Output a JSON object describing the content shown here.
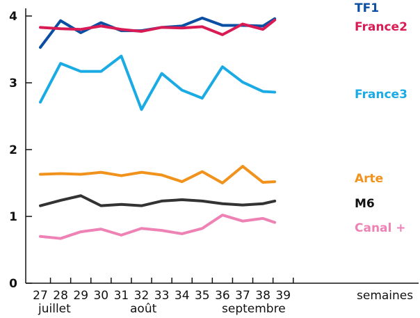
{
  "chart_data": {
    "type": "line",
    "x": [
      "27",
      "28",
      "29",
      "30",
      "31",
      "32",
      "33",
      "34",
      "35",
      "36",
      "37",
      "38",
      "39"
    ],
    "xlabel": "semaines",
    "x_groups": [
      "juillet",
      "août",
      "septembre"
    ],
    "yticks": [
      "0",
      "1",
      "2",
      "3",
      "4"
    ],
    "ylim": [
      0,
      4.1
    ],
    "grid": false,
    "series": [
      {
        "name": "TF1",
        "color": "#0a4fa3",
        "values": [
          3.53,
          3.93,
          3.75,
          3.9,
          3.78,
          3.78,
          3.83,
          3.85,
          3.97,
          3.86,
          3.86,
          3.85,
          3.96
        ]
      },
      {
        "name": "France2",
        "color": "#d81b54",
        "values": [
          3.83,
          3.81,
          3.8,
          3.85,
          3.8,
          3.77,
          3.83,
          3.82,
          3.84,
          3.72,
          3.88,
          3.8,
          3.94
        ]
      },
      {
        "name": "France3",
        "color": "#1aabe4",
        "values": [
          2.71,
          3.29,
          3.17,
          3.17,
          3.4,
          2.6,
          3.14,
          2.89,
          2.77,
          3.24,
          3.01,
          2.87,
          2.86
        ]
      },
      {
        "name": "Arte",
        "color": "#f0921c",
        "values": [
          1.63,
          1.64,
          1.63,
          1.66,
          1.61,
          1.66,
          1.62,
          1.52,
          1.67,
          1.5,
          1.75,
          1.51,
          1.52
        ]
      },
      {
        "name": "M6",
        "color": "#333333",
        "values": [
          1.16,
          1.24,
          1.31,
          1.16,
          1.18,
          1.16,
          1.23,
          1.25,
          1.23,
          1.19,
          1.17,
          1.19,
          1.23
        ]
      },
      {
        "name": "Canal +",
        "color": "#ee82b4",
        "values": [
          0.7,
          0.67,
          0.77,
          0.81,
          0.72,
          0.82,
          0.79,
          0.74,
          0.82,
          1.02,
          0.93,
          0.97,
          0.91
        ]
      }
    ]
  }
}
